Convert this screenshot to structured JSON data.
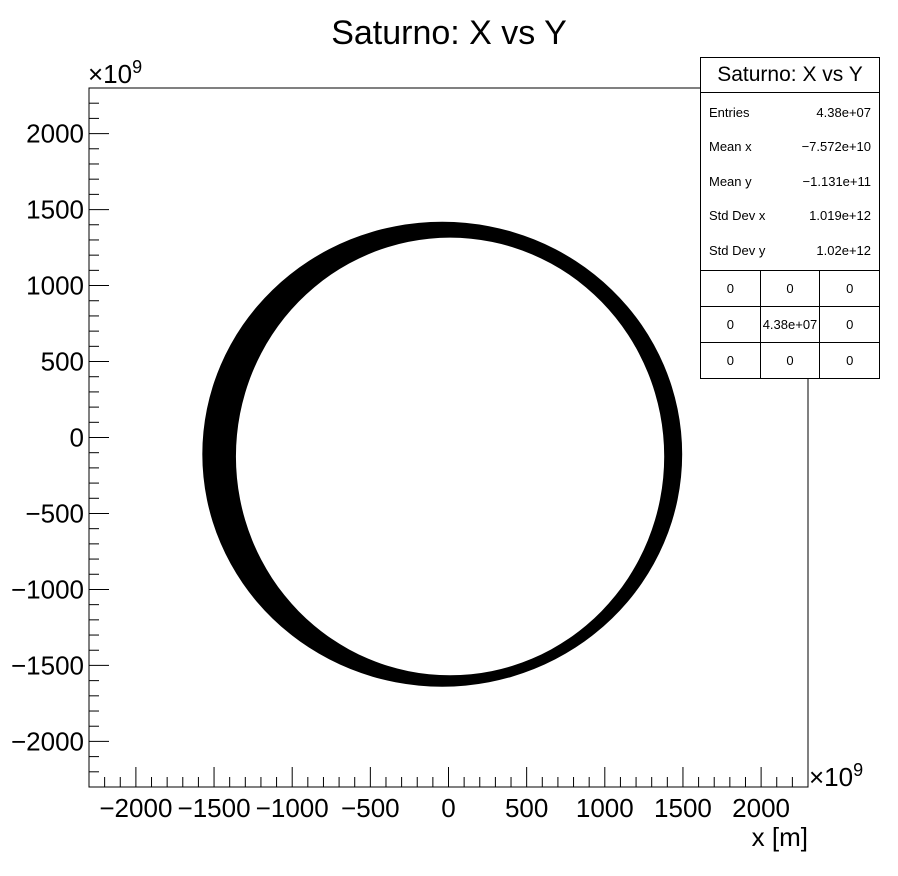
{
  "chart_data": {
    "type": "scatter",
    "title": "Saturno: X vs Y",
    "xlabel": "x [m]",
    "ylabel": "",
    "axis_multiplier": "×10",
    "axis_multiplier_exponent": "9",
    "xlim": [
      -2300,
      2300
    ],
    "ylim": [
      -2300,
      2300
    ],
    "xticks": [
      -2000,
      -1500,
      -1000,
      -500,
      0,
      500,
      1000,
      1500,
      2000
    ],
    "yticks": [
      -2000,
      -1500,
      -1000,
      -500,
      0,
      500,
      1000,
      1500,
      2000
    ],
    "xtick_labels": [
      "−2000",
      "−1500",
      "−1000",
      "−500",
      "0",
      "500",
      "1000",
      "1500",
      "2000"
    ],
    "ytick_labels": [
      "−2000",
      "−1500",
      "−1000",
      "−500",
      "0",
      "500",
      "1000",
      "1500",
      "2000"
    ],
    "series": [
      {
        "description_in_data_units": "orbit band",
        "inner_ellipse": {
          "cx": 10,
          "cy": -125,
          "rx": 1370,
          "ry": 1440
        },
        "outer_ellipse": {
          "cx": -40,
          "cy": -110,
          "rx": 1535,
          "ry": 1530
        },
        "color": "#000000"
      }
    ],
    "grid": false,
    "legend": "stats box top-right"
  },
  "stats": {
    "title": "Saturno: X vs Y",
    "rows": [
      {
        "label": "Entries",
        "value": "4.38e+07"
      },
      {
        "label": "Mean x",
        "value": "−7.572e+10"
      },
      {
        "label": "Mean y",
        "value": "−1.131e+11"
      },
      {
        "label": "Std Dev x",
        "value": "1.019e+12"
      },
      {
        "label": "Std Dev y",
        "value": "1.02e+12"
      }
    ],
    "grid": [
      [
        "0",
        "0",
        "0"
      ],
      [
        "0",
        "4.38e+07",
        "0"
      ],
      [
        "0",
        "0",
        "0"
      ]
    ]
  }
}
